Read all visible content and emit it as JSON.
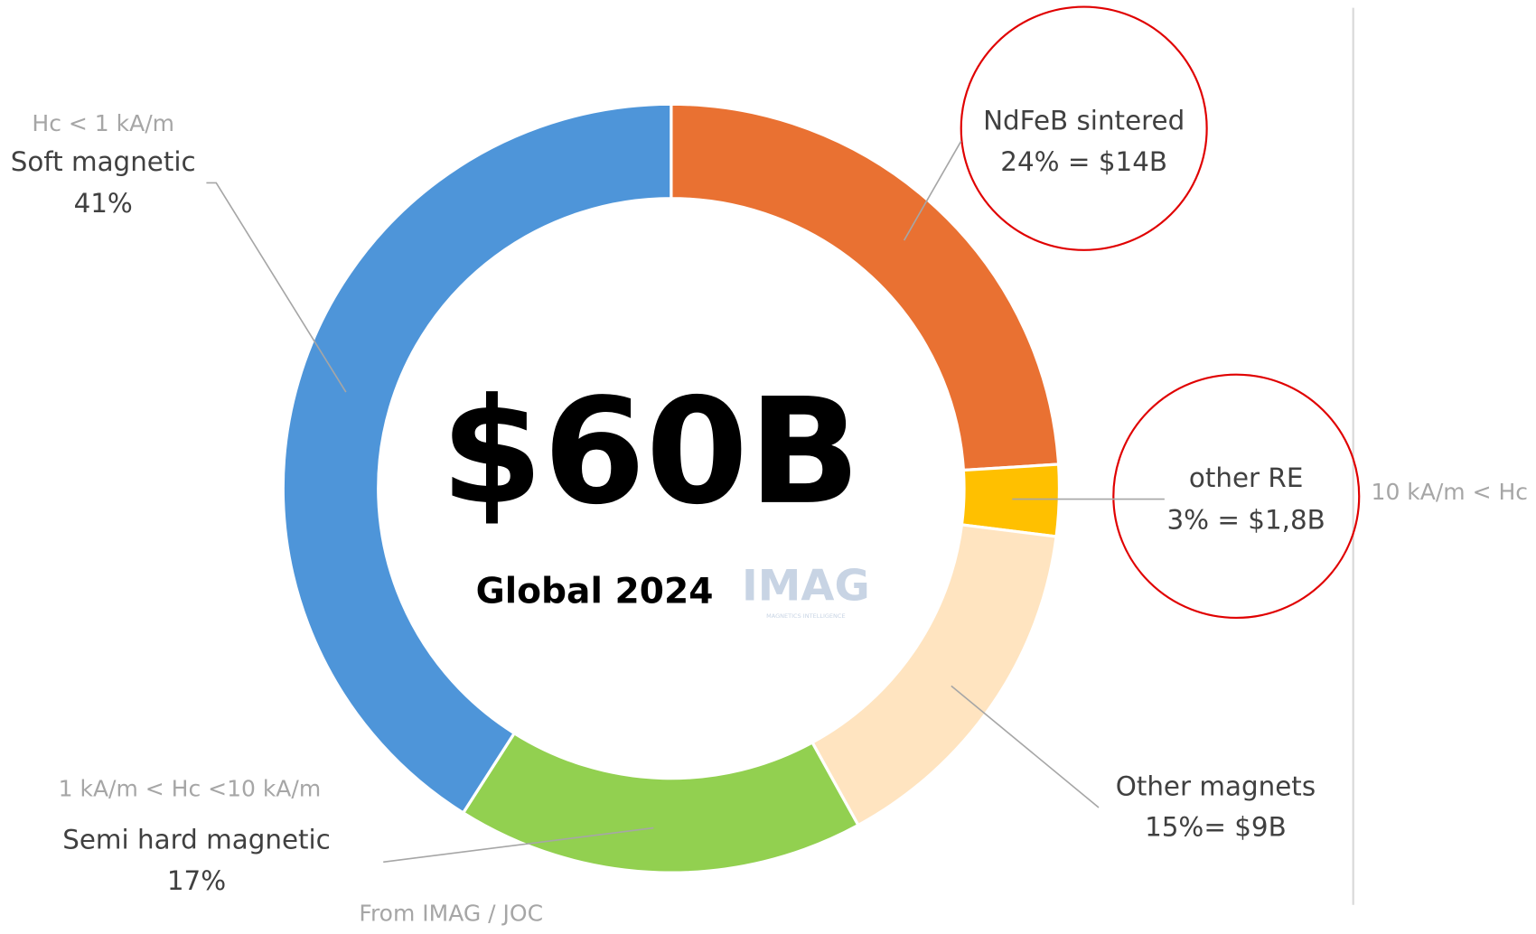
{
  "chart_data": {
    "type": "donut",
    "categories": [
      "NdFeB sintered",
      "other RE",
      "Other magnets",
      "Semi hard magnetic",
      "Soft magnetic"
    ],
    "values": [
      24,
      3,
      15,
      17,
      41
    ],
    "value_labels": [
      "24% = $14B",
      "3% = $1,8B",
      "15%= $9B",
      "17%",
      "41%"
    ],
    "colors": [
      "#E97132",
      "#FFC000",
      "#FFE4C0",
      "#92D050",
      "#4E95D9"
    ],
    "center_title": "$60B",
    "center_subtitle": "Global 2024",
    "logo": "IMAG",
    "logo_tagline": "MAGNETICS INTELLIGENCE",
    "annotations": [
      "Hc < 1 kA/m",
      "1 kA/m < Hc <10 kA/m",
      "10 kA/m < Hc",
      "From IMAG / JOC"
    ]
  }
}
